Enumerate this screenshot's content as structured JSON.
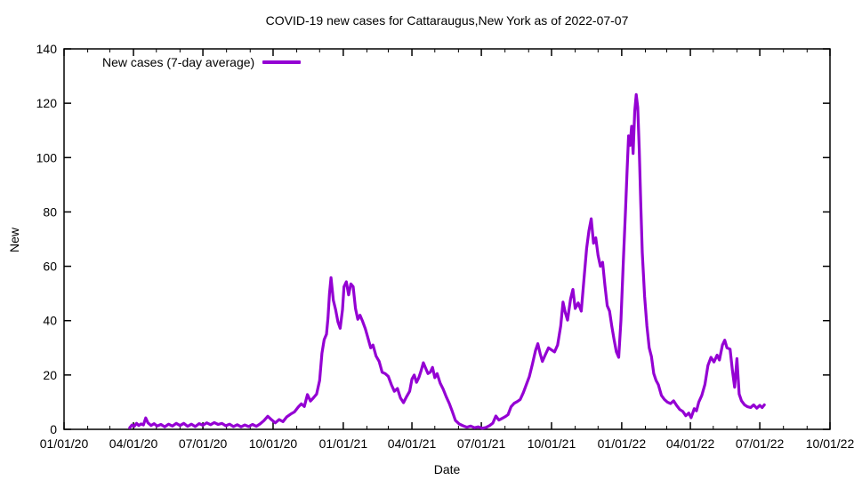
{
  "title": "COVID-19 new cases for Cattaraugus,New York as of 2022-07-07",
  "legend": {
    "label": "New cases (7-day average)"
  },
  "colors": {
    "line": "#9400d3",
    "background": "#ffffff",
    "axis": "#000000"
  },
  "chart_data": {
    "type": "line",
    "title": "COVID-19 new cases for Cattaraugus,New York as of 2022-07-07",
    "xlabel": "Date",
    "ylabel": "New",
    "x_range": [
      "2020-01-01",
      "2022-10-01"
    ],
    "ylim": [
      0,
      140
    ],
    "grid": false,
    "legend_position": "top-left-inside",
    "line_color": "#9400d3",
    "y_ticks": [
      0,
      20,
      40,
      60,
      80,
      100,
      120,
      140
    ],
    "x_ticks": [
      {
        "date": "2020-01-01",
        "label": "01/01/20"
      },
      {
        "date": "2020-04-01",
        "label": "04/01/20"
      },
      {
        "date": "2020-07-01",
        "label": "07/01/20"
      },
      {
        "date": "2020-10-01",
        "label": "10/01/20"
      },
      {
        "date": "2021-01-01",
        "label": "01/01/21"
      },
      {
        "date": "2021-04-01",
        "label": "04/01/21"
      },
      {
        "date": "2021-07-01",
        "label": "07/01/21"
      },
      {
        "date": "2021-10-01",
        "label": "10/01/21"
      },
      {
        "date": "2022-01-01",
        "label": "01/01/22"
      },
      {
        "date": "2022-04-01",
        "label": "04/01/22"
      },
      {
        "date": "2022-07-01",
        "label": "07/01/22"
      },
      {
        "date": "2022-10-01",
        "label": "10/01/22"
      }
    ],
    "x_minor_tick_unit": "month",
    "series": [
      {
        "name": "New cases (7-day average)",
        "points": [
          [
            "2020-03-27",
            0.6
          ],
          [
            "2020-03-30",
            1.6
          ],
          [
            "2020-04-02",
            1.1
          ],
          [
            "2020-04-05",
            2.2
          ],
          [
            "2020-04-08",
            1.4
          ],
          [
            "2020-04-11",
            2.0
          ],
          [
            "2020-04-14",
            1.6
          ],
          [
            "2020-04-17",
            4.2
          ],
          [
            "2020-04-20",
            2.4
          ],
          [
            "2020-04-24",
            1.4
          ],
          [
            "2020-04-28",
            2.1
          ],
          [
            "2020-05-02",
            1.2
          ],
          [
            "2020-05-07",
            1.8
          ],
          [
            "2020-05-12",
            0.9
          ],
          [
            "2020-05-17",
            1.9
          ],
          [
            "2020-05-22",
            1.2
          ],
          [
            "2020-05-27",
            2.2
          ],
          [
            "2020-06-01",
            1.4
          ],
          [
            "2020-06-06",
            2.2
          ],
          [
            "2020-06-11",
            1.1
          ],
          [
            "2020-06-16",
            1.9
          ],
          [
            "2020-06-21",
            1.0
          ],
          [
            "2020-06-26",
            2.1
          ],
          [
            "2020-07-01",
            1.5
          ],
          [
            "2020-07-06",
            2.4
          ],
          [
            "2020-07-11",
            1.7
          ],
          [
            "2020-07-16",
            2.5
          ],
          [
            "2020-07-21",
            1.8
          ],
          [
            "2020-07-26",
            2.2
          ],
          [
            "2020-07-31",
            1.3
          ],
          [
            "2020-08-05",
            1.9
          ],
          [
            "2020-08-10",
            1.0
          ],
          [
            "2020-08-15",
            1.7
          ],
          [
            "2020-08-20",
            0.9
          ],
          [
            "2020-08-25",
            1.6
          ],
          [
            "2020-08-30",
            1.0
          ],
          [
            "2020-09-04",
            1.8
          ],
          [
            "2020-09-09",
            1.1
          ],
          [
            "2020-09-14",
            2.0
          ],
          [
            "2020-09-19",
            3.2
          ],
          [
            "2020-09-24",
            4.8
          ],
          [
            "2020-09-29",
            3.5
          ],
          [
            "2020-10-04",
            2.4
          ],
          [
            "2020-10-09",
            3.6
          ],
          [
            "2020-10-14",
            2.8
          ],
          [
            "2020-10-19",
            4.6
          ],
          [
            "2020-10-24",
            5.6
          ],
          [
            "2020-10-29",
            6.4
          ],
          [
            "2020-11-03",
            8.2
          ],
          [
            "2020-11-07",
            9.4
          ],
          [
            "2020-11-11",
            8.4
          ],
          [
            "2020-11-15",
            12.8
          ],
          [
            "2020-11-19",
            10.4
          ],
          [
            "2020-11-23",
            11.6
          ],
          [
            "2020-11-27",
            13.0
          ],
          [
            "2020-12-01",
            18.0
          ],
          [
            "2020-12-04",
            28.0
          ],
          [
            "2020-12-07",
            33.0
          ],
          [
            "2020-12-10",
            35.0
          ],
          [
            "2020-12-12",
            41.0
          ],
          [
            "2020-12-14",
            50.0
          ],
          [
            "2020-12-16",
            55.8
          ],
          [
            "2020-12-19",
            47.5
          ],
          [
            "2020-12-22",
            44.0
          ],
          [
            "2020-12-25",
            39.5
          ],
          [
            "2020-12-28",
            37.2
          ],
          [
            "2020-12-31",
            44.0
          ],
          [
            "2021-01-02",
            52.5
          ],
          [
            "2021-01-05",
            54.3
          ],
          [
            "2021-01-08",
            49.5
          ],
          [
            "2021-01-11",
            53.5
          ],
          [
            "2021-01-14",
            52.5
          ],
          [
            "2021-01-17",
            44.5
          ],
          [
            "2021-01-20",
            40.5
          ],
          [
            "2021-01-23",
            42.0
          ],
          [
            "2021-01-26",
            40.0
          ],
          [
            "2021-01-30",
            37.0
          ],
          [
            "2021-02-02",
            34.0
          ],
          [
            "2021-02-06",
            30.0
          ],
          [
            "2021-02-09",
            31.0
          ],
          [
            "2021-02-13",
            27.0
          ],
          [
            "2021-02-17",
            25.0
          ],
          [
            "2021-02-21",
            21.0
          ],
          [
            "2021-02-25",
            20.5
          ],
          [
            "2021-03-01",
            19.5
          ],
          [
            "2021-03-05",
            16.5
          ],
          [
            "2021-03-09",
            14.0
          ],
          [
            "2021-03-13",
            15.0
          ],
          [
            "2021-03-17",
            11.5
          ],
          [
            "2021-03-21",
            9.8
          ],
          [
            "2021-03-25",
            12.0
          ],
          [
            "2021-03-29",
            14.0
          ],
          [
            "2021-04-01",
            18.5
          ],
          [
            "2021-04-04",
            20.0
          ],
          [
            "2021-04-07",
            17.3
          ],
          [
            "2021-04-10",
            19.0
          ],
          [
            "2021-04-13",
            21.5
          ],
          [
            "2021-04-16",
            24.5
          ],
          [
            "2021-04-19",
            22.5
          ],
          [
            "2021-04-22",
            20.5
          ],
          [
            "2021-04-25",
            21.0
          ],
          [
            "2021-04-28",
            22.8
          ],
          [
            "2021-05-01",
            19.0
          ],
          [
            "2021-05-04",
            20.5
          ],
          [
            "2021-05-08",
            17.0
          ],
          [
            "2021-05-12",
            14.8
          ],
          [
            "2021-05-16",
            12.0
          ],
          [
            "2021-05-20",
            9.5
          ],
          [
            "2021-05-24",
            6.5
          ],
          [
            "2021-05-28",
            3.3
          ],
          [
            "2021-06-02",
            2.0
          ],
          [
            "2021-06-07",
            1.3
          ],
          [
            "2021-06-12",
            0.8
          ],
          [
            "2021-06-17",
            1.2
          ],
          [
            "2021-06-22",
            0.6
          ],
          [
            "2021-06-27",
            0.9
          ],
          [
            "2021-07-02",
            0.4
          ],
          [
            "2021-07-07",
            0.7
          ],
          [
            "2021-07-12",
            1.4
          ],
          [
            "2021-07-16",
            2.3
          ],
          [
            "2021-07-20",
            4.9
          ],
          [
            "2021-07-24",
            3.4
          ],
          [
            "2021-07-28",
            4.0
          ],
          [
            "2021-08-01",
            4.6
          ],
          [
            "2021-08-05",
            5.4
          ],
          [
            "2021-08-09",
            8.3
          ],
          [
            "2021-08-13",
            9.6
          ],
          [
            "2021-08-17",
            10.2
          ],
          [
            "2021-08-21",
            11.0
          ],
          [
            "2021-08-25",
            13.5
          ],
          [
            "2021-08-29",
            16.5
          ],
          [
            "2021-09-02",
            19.5
          ],
          [
            "2021-09-06",
            24.0
          ],
          [
            "2021-09-10",
            29.0
          ],
          [
            "2021-09-13",
            31.5
          ],
          [
            "2021-09-16",
            28.0
          ],
          [
            "2021-09-19",
            25.0
          ],
          [
            "2021-09-23",
            27.5
          ],
          [
            "2021-09-27",
            30.0
          ],
          [
            "2021-10-01",
            29.2
          ],
          [
            "2021-10-05",
            28.5
          ],
          [
            "2021-10-09",
            31.0
          ],
          [
            "2021-10-13",
            38.0
          ],
          [
            "2021-10-16",
            46.8
          ],
          [
            "2021-10-19",
            43.0
          ],
          [
            "2021-10-22",
            40.2
          ],
          [
            "2021-10-26",
            48.0
          ],
          [
            "2021-10-29",
            51.5
          ],
          [
            "2021-11-01",
            44.5
          ],
          [
            "2021-11-05",
            46.5
          ],
          [
            "2021-11-09",
            43.5
          ],
          [
            "2021-11-13",
            57.0
          ],
          [
            "2021-11-16",
            66.5
          ],
          [
            "2021-11-19",
            73.0
          ],
          [
            "2021-11-22",
            77.5
          ],
          [
            "2021-11-25",
            68.5
          ],
          [
            "2021-11-28",
            70.5
          ],
          [
            "2021-12-01",
            64.0
          ],
          [
            "2021-12-04",
            60.0
          ],
          [
            "2021-12-07",
            61.5
          ],
          [
            "2021-12-10",
            53.0
          ],
          [
            "2021-12-13",
            45.5
          ],
          [
            "2021-12-16",
            43.5
          ],
          [
            "2021-12-19",
            38.0
          ],
          [
            "2021-12-22",
            33.0
          ],
          [
            "2021-12-25",
            28.5
          ],
          [
            "2021-12-28",
            26.5
          ],
          [
            "2021-12-31",
            40.0
          ],
          [
            "2022-01-03",
            61.0
          ],
          [
            "2022-01-06",
            81.0
          ],
          [
            "2022-01-08",
            95.0
          ],
          [
            "2022-01-10",
            108.0
          ],
          [
            "2022-01-12",
            104.5
          ],
          [
            "2022-01-14",
            111.5
          ],
          [
            "2022-01-16",
            101.5
          ],
          [
            "2022-01-18",
            117.0
          ],
          [
            "2022-01-20",
            123.2
          ],
          [
            "2022-01-22",
            118.5
          ],
          [
            "2022-01-24",
            103.0
          ],
          [
            "2022-01-26",
            83.0
          ],
          [
            "2022-01-28",
            65.0
          ],
          [
            "2022-01-31",
            49.0
          ],
          [
            "2022-02-03",
            38.0
          ],
          [
            "2022-02-06",
            30.0
          ],
          [
            "2022-02-09",
            26.8
          ],
          [
            "2022-02-12",
            20.5
          ],
          [
            "2022-02-15",
            18.0
          ],
          [
            "2022-02-18",
            16.5
          ],
          [
            "2022-02-22",
            12.5
          ],
          [
            "2022-02-26",
            11.0
          ],
          [
            "2022-03-02",
            10.0
          ],
          [
            "2022-03-06",
            9.5
          ],
          [
            "2022-03-10",
            10.5
          ],
          [
            "2022-03-14",
            8.8
          ],
          [
            "2022-03-18",
            7.3
          ],
          [
            "2022-03-22",
            6.6
          ],
          [
            "2022-03-26",
            5.0
          ],
          [
            "2022-03-30",
            6.0
          ],
          [
            "2022-04-02",
            4.3
          ],
          [
            "2022-04-06",
            7.6
          ],
          [
            "2022-04-09",
            6.8
          ],
          [
            "2022-04-12",
            10.0
          ],
          [
            "2022-04-16",
            12.5
          ],
          [
            "2022-04-20",
            16.5
          ],
          [
            "2022-04-24",
            23.5
          ],
          [
            "2022-04-28",
            26.5
          ],
          [
            "2022-05-02",
            24.8
          ],
          [
            "2022-05-06",
            27.3
          ],
          [
            "2022-05-09",
            25.5
          ],
          [
            "2022-05-13",
            31.0
          ],
          [
            "2022-05-16",
            32.8
          ],
          [
            "2022-05-19",
            30.0
          ],
          [
            "2022-05-23",
            29.5
          ],
          [
            "2022-05-26",
            22.0
          ],
          [
            "2022-05-29",
            15.5
          ],
          [
            "2022-06-01",
            26.0
          ],
          [
            "2022-06-04",
            13.0
          ],
          [
            "2022-06-07",
            10.5
          ],
          [
            "2022-06-11",
            9.0
          ],
          [
            "2022-06-15",
            8.3
          ],
          [
            "2022-06-19",
            8.0
          ],
          [
            "2022-06-23",
            9.0
          ],
          [
            "2022-06-27",
            7.8
          ],
          [
            "2022-07-01",
            8.8
          ],
          [
            "2022-07-04",
            8.0
          ],
          [
            "2022-07-07",
            9.0
          ]
        ]
      }
    ]
  }
}
